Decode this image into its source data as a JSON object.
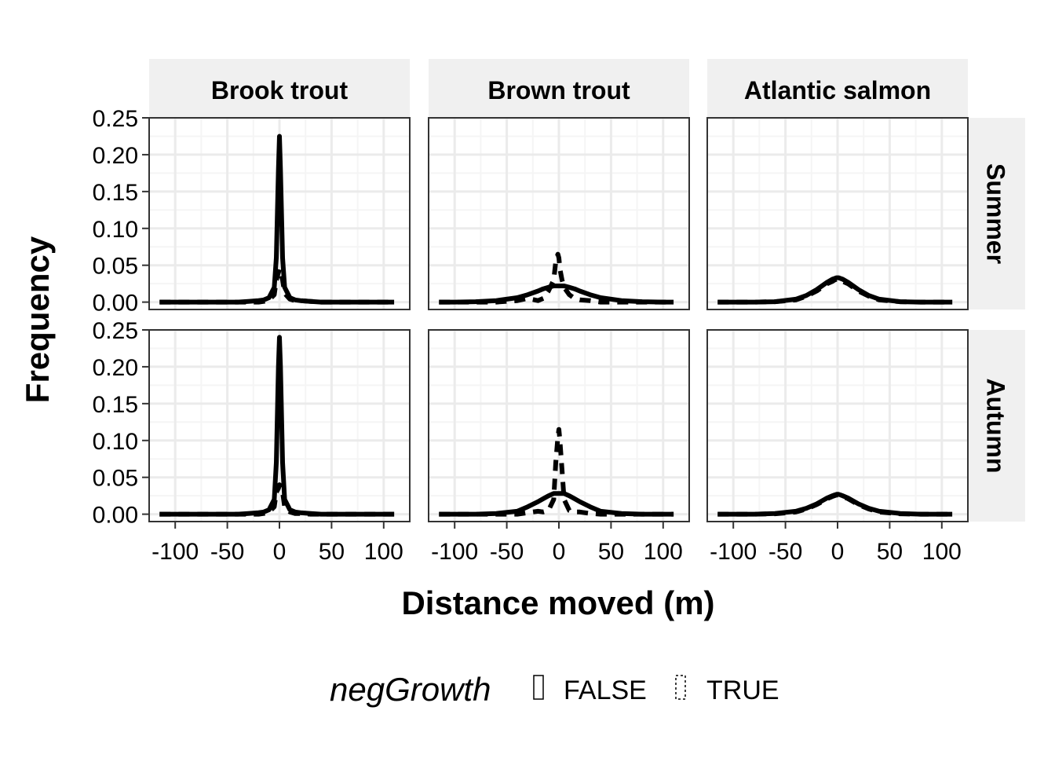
{
  "chart_data": {
    "type": "line",
    "xlabel": "Distance moved (m)",
    "ylabel": "Frequency",
    "xlim": [
      -125,
      125
    ],
    "ylim": [
      -0.01,
      0.25
    ],
    "x_ticks": [
      -100,
      -50,
      0,
      50,
      100
    ],
    "x_tick_labels": [
      "-100",
      "-50",
      "0",
      "50",
      "100"
    ],
    "y_ticks": [
      0,
      0.05,
      0.1,
      0.15,
      0.2,
      0.25
    ],
    "y_tick_labels": [
      "0.00",
      "0.05",
      "0.10",
      "0.15",
      "0.20",
      "0.25"
    ],
    "grid": true,
    "columns": [
      "Brook trout",
      "Brown trout",
      "Atlantic salmon"
    ],
    "rows": [
      "Summer",
      "Autumn"
    ],
    "legend": {
      "title": "negGrowth",
      "position": "bottom",
      "entries": [
        {
          "label": "FALSE",
          "linetype": "solid"
        },
        {
          "label": "TRUE",
          "linetype": "dashed"
        }
      ]
    },
    "x": [
      -115,
      -100,
      -80,
      -60,
      -40,
      -30,
      -20,
      -15,
      -10,
      -5,
      -3,
      -1,
      0,
      1,
      3,
      5,
      10,
      15,
      20,
      30,
      40,
      60,
      80,
      100,
      110
    ],
    "panels": [
      {
        "column": "Brook trout",
        "row": "Summer",
        "series": [
          {
            "name": "FALSE",
            "values": [
              0,
              0,
              0,
              0,
              0,
              0.001,
              0.002,
              0.003,
              0.006,
              0.02,
              0.06,
              0.18,
              0.225,
              0.18,
              0.06,
              0.02,
              0.006,
              0.003,
              0.002,
              0.001,
              0,
              0,
              0,
              0,
              0
            ]
          },
          {
            "name": "TRUE",
            "values": [
              0,
              0,
              0,
              0,
              0,
              0,
              0,
              0.001,
              0.003,
              0.01,
              0.03,
              0.04,
              0.045,
              0.04,
              0.03,
              0.012,
              0.004,
              0.002,
              0.002,
              0.001,
              0,
              0,
              0,
              0,
              0
            ]
          }
        ]
      },
      {
        "column": "Brown trout",
        "row": "Summer",
        "series": [
          {
            "name": "FALSE",
            "values": [
              0,
              0,
              0.0005,
              0.002,
              0.006,
              0.01,
              0.015,
              0.018,
              0.02,
              0.022,
              0.022,
              0.022,
              0.022,
              0.022,
              0.022,
              0.022,
              0.02,
              0.018,
              0.015,
              0.01,
              0.006,
              0.002,
              0.0005,
              0,
              0
            ]
          },
          {
            "name": "TRUE",
            "values": [
              0,
              0,
              0,
              0,
              0.002,
              0.005,
              0.002,
              0.005,
              0.015,
              0.03,
              0.055,
              0.065,
              0.06,
              0.045,
              0.03,
              0.02,
              0.01,
              0.005,
              0.003,
              0.002,
              0,
              0,
              0,
              0,
              0
            ]
          }
        ]
      },
      {
        "column": "Atlantic salmon",
        "row": "Summer",
        "series": [
          {
            "name": "FALSE",
            "values": [
              0,
              0,
              0,
              0.0005,
              0.004,
              0.009,
              0.017,
              0.022,
              0.027,
              0.031,
              0.032,
              0.033,
              0.033,
              0.033,
              0.032,
              0.031,
              0.027,
              0.022,
              0.017,
              0.009,
              0.004,
              0.0005,
              0,
              0,
              0
            ]
          },
          {
            "name": "TRUE",
            "values": [
              0,
              0,
              0,
              0.0005,
              0.003,
              0.008,
              0.015,
              0.02,
              0.025,
              0.028,
              0.03,
              0.031,
              0.031,
              0.031,
              0.03,
              0.028,
              0.025,
              0.02,
              0.015,
              0.008,
              0.003,
              0.0005,
              0,
              0,
              0
            ]
          }
        ]
      },
      {
        "column": "Brook trout",
        "row": "Autumn",
        "series": [
          {
            "name": "FALSE",
            "values": [
              0,
              0,
              0,
              0,
              0,
              0.001,
              0.002,
              0.003,
              0.006,
              0.02,
              0.07,
              0.2,
              0.24,
              0.2,
              0.07,
              0.02,
              0.006,
              0.003,
              0.002,
              0.001,
              0,
              0,
              0,
              0,
              0
            ]
          },
          {
            "name": "TRUE",
            "values": [
              0,
              0,
              0,
              0,
              0,
              0,
              0,
              0.001,
              0.003,
              0.01,
              0.03,
              0.035,
              0.04,
              0.035,
              0.03,
              0.01,
              0.003,
              0.001,
              0.001,
              0,
              0,
              0,
              0,
              0,
              0
            ]
          }
        ]
      },
      {
        "column": "Brown trout",
        "row": "Autumn",
        "series": [
          {
            "name": "FALSE",
            "values": [
              0,
              0,
              0,
              0.001,
              0.004,
              0.01,
              0.017,
              0.021,
              0.025,
              0.028,
              0.028,
              0.028,
              0.028,
              0.028,
              0.028,
              0.028,
              0.025,
              0.021,
              0.017,
              0.01,
              0.004,
              0.001,
              0,
              0,
              0
            ]
          },
          {
            "name": "TRUE",
            "values": [
              0,
              0,
              0,
              0,
              0,
              0.002,
              0.004,
              0.003,
              0.005,
              0.02,
              0.07,
              0.105,
              0.115,
              0.1,
              0.06,
              0.02,
              0.005,
              0.003,
              0.003,
              0.001,
              0,
              0,
              0,
              0,
              0
            ]
          }
        ]
      },
      {
        "column": "Atlantic salmon",
        "row": "Autumn",
        "series": [
          {
            "name": "FALSE",
            "values": [
              0,
              0,
              0,
              0.001,
              0.004,
              0.008,
              0.014,
              0.018,
              0.022,
              0.025,
              0.026,
              0.027,
              0.027,
              0.027,
              0.026,
              0.025,
              0.022,
              0.018,
              0.014,
              0.008,
              0.004,
              0.001,
              0,
              0,
              0
            ]
          },
          {
            "name": "TRUE",
            "values": [
              0,
              0,
              0,
              0.0005,
              0.003,
              0.007,
              0.013,
              0.017,
              0.021,
              0.024,
              0.025,
              0.026,
              0.026,
              0.026,
              0.025,
              0.024,
              0.021,
              0.017,
              0.013,
              0.007,
              0.003,
              0.0005,
              0,
              0,
              0
            ]
          }
        ]
      }
    ]
  }
}
